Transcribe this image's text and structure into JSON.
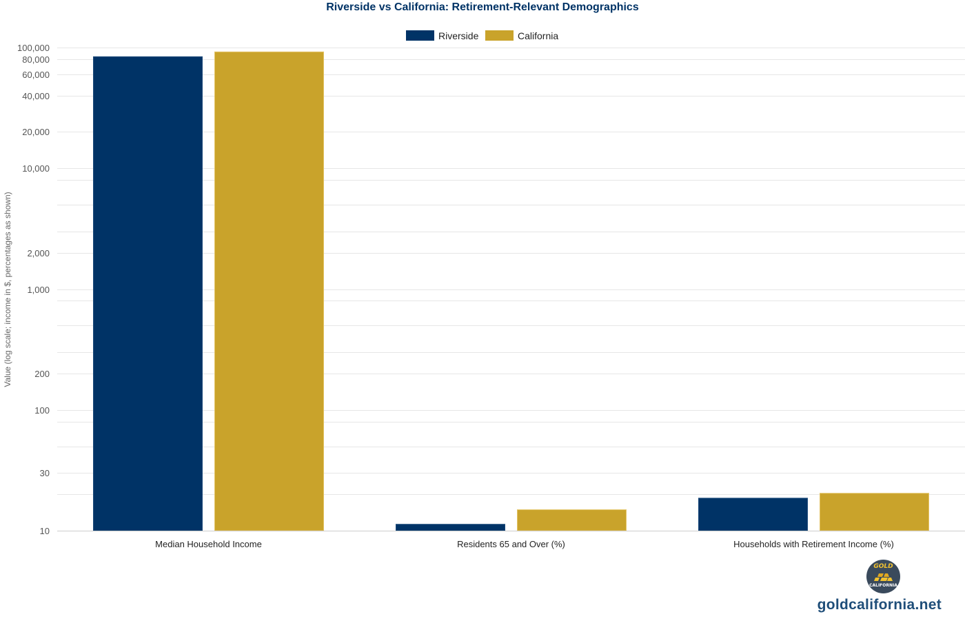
{
  "chart_data": {
    "type": "bar",
    "title": "Riverside vs California: Retirement-Relevant Demographics",
    "ylabel": "Value (log scale; income in $, percentages as shown)",
    "xlabel": "",
    "yscale": "log",
    "ylim": [
      10,
      100000
    ],
    "grid": true,
    "legend_position": "top-center",
    "categories": [
      "Median Household Income",
      "Residents 65 and Over (%)",
      "Households with Retirement Income (%)"
    ],
    "y_tick_labels": [
      "10",
      "30",
      "100",
      "200",
      "1,000",
      "2,000",
      "10,000",
      "20,000",
      "40,000",
      "60,000",
      "80,000",
      "100,000"
    ],
    "y_ticks": [
      10,
      30,
      100,
      200,
      1000,
      2000,
      10000,
      20000,
      40000,
      60000,
      80000,
      100000
    ],
    "y_minor_ticks": [
      20,
      50,
      80,
      300,
      500,
      800,
      3000,
      5000,
      8000
    ],
    "series": [
      {
        "name": "Riverside",
        "color": "#003366",
        "values": [
          84000,
          11.3,
          18.6
        ]
      },
      {
        "name": "California",
        "color": "#c9a32b",
        "values": [
          92000,
          14.9,
          20.4
        ]
      }
    ]
  },
  "branding": {
    "logo_text_top": "GOLD",
    "logo_text_bottom": "CALIFORNIA",
    "logo_colors": {
      "background": "#3a4a5c",
      "gold": "#f2c230"
    },
    "site_url": "goldcalifornia.net"
  }
}
